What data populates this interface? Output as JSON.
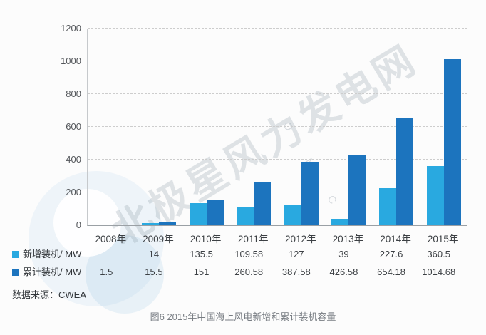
{
  "chart_data": {
    "type": "bar",
    "title": "图6 2015年中国海上风电新增和累计装机容量",
    "categories": [
      "2008年",
      "2009年",
      "2010年",
      "2011年",
      "2012年",
      "2013年",
      "2014年",
      "2015年"
    ],
    "series": [
      {
        "name": "新增装机/ MW",
        "color": "#29a9e0",
        "values": [
          null,
          14,
          135.5,
          109.58,
          127,
          39,
          227.6,
          360.5
        ]
      },
      {
        "name": "累计装机/ MW",
        "color": "#1c74be",
        "values": [
          1.5,
          15.5,
          151,
          260.58,
          387.58,
          426.58,
          654.18,
          1014.68
        ]
      }
    ],
    "xlabel": "",
    "ylabel": "",
    "ylim": [
      0,
      1200
    ],
    "yticks": [
      0,
      200,
      400,
      600,
      800,
      1000,
      1200
    ],
    "grid": "horizontal-dashed",
    "legend_position": "bottom-left-table"
  },
  "table": {
    "rows": [
      {
        "label": "新增装机/ MW",
        "swatch_color": "#29a9e0",
        "values": [
          "",
          "14",
          "135.5",
          "109.58",
          "127",
          "39",
          "227.6",
          "360.5"
        ]
      },
      {
        "label": "累计装机/ MW",
        "swatch_color": "#1c74be",
        "values": [
          "1.5",
          "15.5",
          "151",
          "260.58",
          "387.58",
          "426.58",
          "654.18",
          "1014.68"
        ]
      }
    ]
  },
  "source_label": "数据来源：CWEA",
  "caption": "图6 2015年中国海上风电新增和累计装机容量",
  "watermark": {
    "text": "北极星风力发电网",
    "letters": "O M C"
  },
  "colors": {
    "new_series": "#29a9e0",
    "cumulative_series": "#1c74be",
    "gridline": "#cdcdcd",
    "axis_line": "#9aa0a5",
    "caption_text": "#787d83"
  }
}
